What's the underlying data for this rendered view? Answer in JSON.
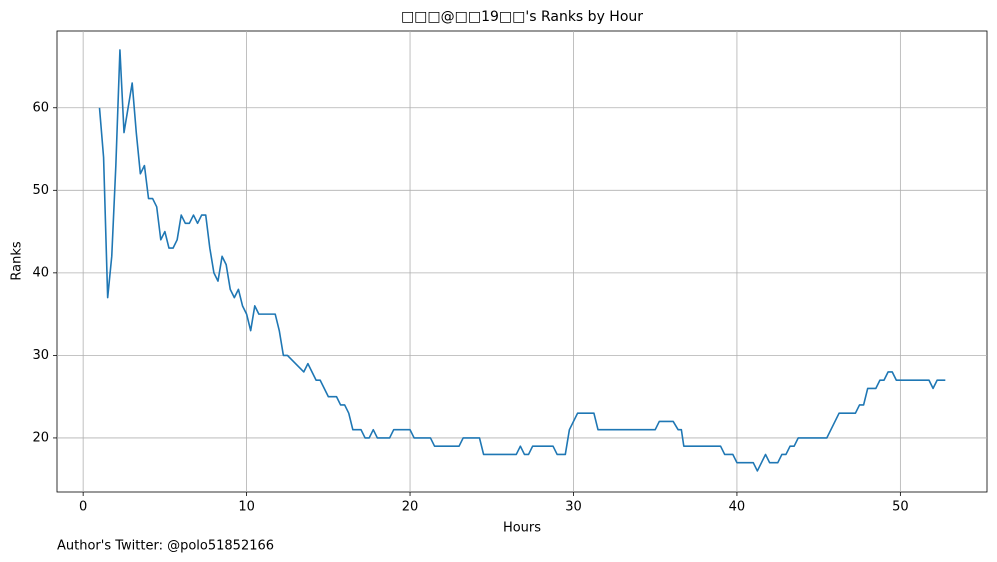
{
  "chart_data": {
    "type": "line",
    "title": "□□□@□□19□□'s Ranks by Hour",
    "x_label": "Hours",
    "y_label": "Ranks",
    "footnote": "Author's Twitter: @polo51852166",
    "x": [
      1,
      1.25,
      1.5,
      1.75,
      2,
      2.25,
      2.5,
      2.75,
      3,
      3.25,
      3.5,
      3.75,
      4,
      4.25,
      4.5,
      4.75,
      5,
      5.25,
      5.5,
      5.75,
      6,
      6.25,
      6.5,
      6.75,
      7,
      7.25,
      7.5,
      7.75,
      8,
      8.25,
      8.5,
      8.75,
      9,
      9.25,
      9.5,
      9.75,
      10,
      10.25,
      10.5,
      10.75,
      11,
      11.25,
      11.5,
      11.75,
      12,
      12.25,
      12.5,
      13.5,
      13.75,
      14,
      14.25,
      14.5,
      14.75,
      15,
      15.5,
      15.75,
      16,
      16.25,
      16.5,
      17,
      17.25,
      17.5,
      17.75,
      18,
      18.75,
      19,
      20,
      20.25,
      21.25,
      21.5,
      23,
      23.25,
      24.25,
      24.5,
      26.5,
      26.75,
      27,
      27.25,
      27.5,
      28.75,
      29,
      29.5,
      29.75,
      30,
      30.25,
      31.25,
      31.5,
      35,
      35.25,
      36.1,
      36.4,
      36.6,
      36.75,
      39,
      39.25,
      39.75,
      40,
      41,
      41.25,
      41.5,
      41.75,
      42,
      42.5,
      42.75,
      43,
      43.25,
      43.5,
      43.75,
      45.5,
      46.25,
      47.25,
      47.5,
      47.75,
      48,
      48.5,
      48.75,
      49,
      49.25,
      49.5,
      49.75,
      51.75,
      52,
      52.25,
      52.75
    ],
    "values": [
      60,
      54,
      37,
      42,
      53,
      67,
      57,
      60,
      63,
      57,
      52,
      53,
      49,
      49,
      48,
      44,
      45,
      43,
      43,
      44,
      47,
      46,
      46,
      47,
      46,
      47,
      47,
      43,
      40,
      39,
      42,
      41,
      38,
      37,
      38,
      36,
      35,
      33,
      36,
      35,
      35,
      35,
      35,
      35,
      33,
      30,
      30,
      28,
      29,
      28,
      27,
      27,
      26,
      25,
      25,
      24,
      24,
      23,
      21,
      21,
      20,
      20,
      21,
      20,
      20,
      21,
      21,
      20,
      20,
      19,
      19,
      20,
      20,
      18,
      18,
      19,
      18,
      18,
      19,
      19,
      18,
      18,
      21,
      22,
      23,
      23,
      21,
      21,
      22,
      22,
      21,
      21,
      19,
      19,
      18,
      18,
      17,
      17,
      16,
      17,
      18,
      17,
      17,
      18,
      18,
      19,
      19,
      20,
      20,
      23,
      23,
      24,
      24,
      26,
      26,
      27,
      27,
      28,
      28,
      27,
      27,
      26,
      27,
      27
    ],
    "color": "#1f77b4",
    "xlim": [
      -1.6,
      55.3
    ],
    "ylim": [
      13.45,
      69.3
    ],
    "xticks": [
      0,
      10,
      20,
      30,
      40,
      50
    ],
    "yticks": [
      20,
      30,
      40,
      50,
      60
    ],
    "grid": true
  }
}
